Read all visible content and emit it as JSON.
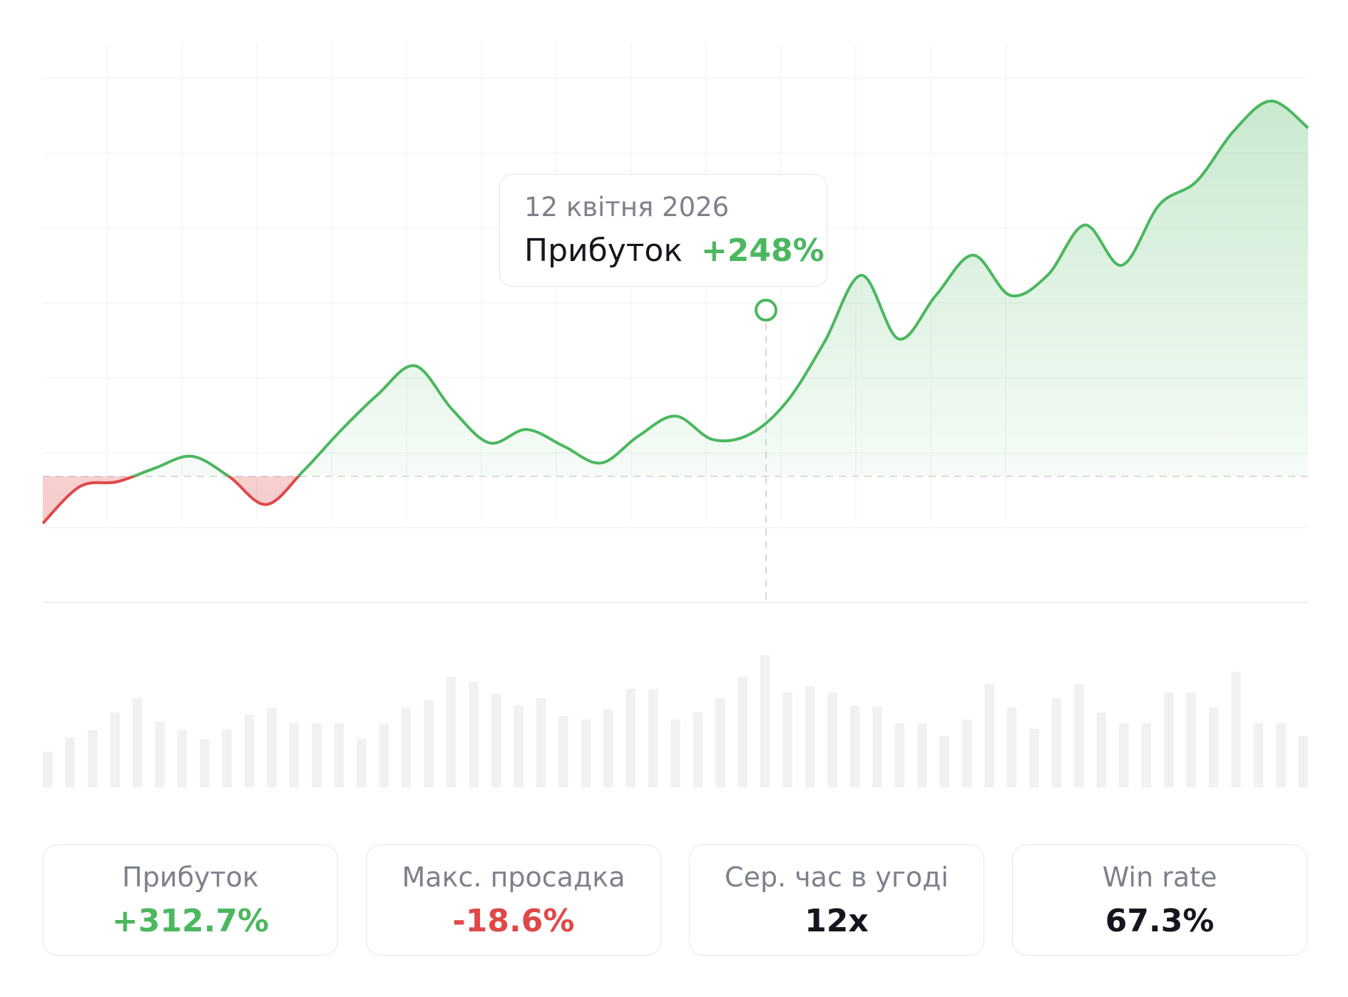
{
  "chart_data": {
    "type": "area",
    "ylabel": "",
    "xlabel": "",
    "baseline": 0,
    "ylim": [
      -80,
      590
    ],
    "grid": true,
    "positive_color": "#4bb75f",
    "negative_color": "#e04848",
    "series": [
      {
        "values": [
          -70,
          -15,
          -8,
          12,
          30,
          0,
          -42,
          8,
          68,
          122,
          165,
          100,
          50,
          70,
          45,
          20,
          60,
          90,
          55,
          63,
          112,
          200,
          300,
          205,
          270,
          330,
          270,
          300,
          375,
          315,
          405,
          440,
          515,
          560,
          520
        ]
      },
      {
        "type": "bar",
        "values": [
          50,
          70,
          80,
          105,
          125,
          92,
          80,
          68,
          82,
          102,
          112,
          90,
          90,
          90,
          68,
          90,
          112,
          122,
          155,
          148,
          132,
          115,
          125,
          100,
          95,
          110,
          138,
          138,
          95,
          105,
          125,
          155,
          185,
          133,
          142,
          133,
          115,
          113,
          90,
          90,
          72,
          95,
          145,
          112,
          82,
          125,
          145,
          105,
          90,
          90,
          133,
          133,
          112,
          162,
          90,
          90,
          72
        ]
      }
    ],
    "highlight": {
      "value": 248,
      "tooltip_date": "12 квітня 2026",
      "tooltip_label": "Прибуток",
      "tooltip_value": "+248%"
    }
  },
  "stats": [
    {
      "title": "Прибуток",
      "value": "+312.7%",
      "color": "#4bb75f"
    },
    {
      "title": "Макс. просадка",
      "value": "-18.6%",
      "color": "#e04848"
    },
    {
      "title": "Сер. час в угоді",
      "value": "12х",
      "color": "#15161d"
    },
    {
      "title": "Win rate",
      "value": "67.3%",
      "color": "#15161d"
    }
  ]
}
